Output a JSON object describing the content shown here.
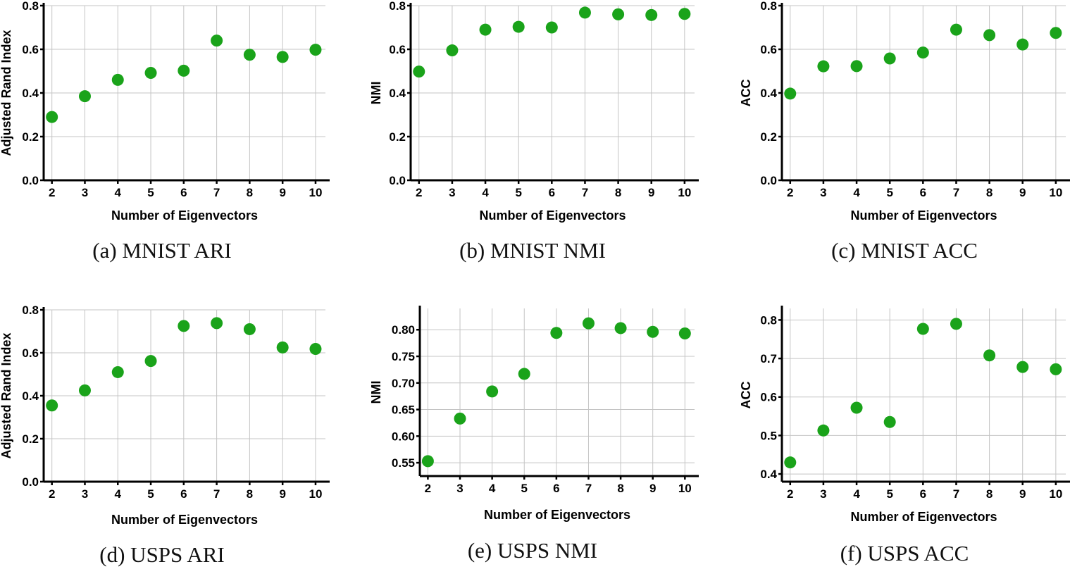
{
  "colors": {
    "marker": "#1aa31a",
    "grid": "#c4c4c4",
    "axis": "#000000"
  },
  "chart_data": [
    {
      "type": "scatter",
      "caption": "(a) MNIST ARI",
      "xlabel": "Number of Eigenvectors",
      "ylabel": "Adjusted Rand Index",
      "x": [
        2,
        3,
        4,
        5,
        6,
        7,
        8,
        9,
        10
      ],
      "values": [
        0.29,
        0.385,
        0.46,
        0.492,
        0.502,
        0.64,
        0.575,
        0.565,
        0.598
      ],
      "xlim": [
        1.75,
        10.3
      ],
      "ylim": [
        0.0,
        0.8
      ],
      "xticks": [
        "2",
        "3",
        "4",
        "5",
        "6",
        "7",
        "8",
        "9",
        "10"
      ],
      "yticks": [
        "0.0",
        "0.2",
        "0.4",
        "0.6",
        "0.8"
      ],
      "grid": true
    },
    {
      "type": "scatter",
      "caption": "(b) MNIST NMI",
      "xlabel": "Number of Eigenvectors",
      "ylabel": "NMI",
      "x": [
        2,
        3,
        4,
        5,
        6,
        7,
        8,
        9,
        10
      ],
      "values": [
        0.498,
        0.595,
        0.69,
        0.703,
        0.7,
        0.768,
        0.76,
        0.757,
        0.762
      ],
      "xlim": [
        1.75,
        10.3
      ],
      "ylim": [
        0.0,
        0.8
      ],
      "xticks": [
        "2",
        "3",
        "4",
        "5",
        "6",
        "7",
        "8",
        "9",
        "10"
      ],
      "yticks": [
        "0.0",
        "0.2",
        "0.4",
        "0.6",
        "0.8"
      ],
      "grid": true
    },
    {
      "type": "scatter",
      "caption": "(c) MNIST ACC",
      "xlabel": "Number of Eigenvectors",
      "ylabel": "ACC",
      "x": [
        2,
        3,
        4,
        5,
        6,
        7,
        8,
        9,
        10
      ],
      "values": [
        0.397,
        0.522,
        0.523,
        0.558,
        0.585,
        0.69,
        0.665,
        0.622,
        0.675
      ],
      "xlim": [
        1.75,
        10.3
      ],
      "ylim": [
        0.0,
        0.8
      ],
      "xticks": [
        "2",
        "3",
        "4",
        "5",
        "6",
        "7",
        "8",
        "9",
        "10"
      ],
      "yticks": [
        "0.0",
        "0.2",
        "0.4",
        "0.6",
        "0.8"
      ],
      "grid": true
    },
    {
      "type": "scatter",
      "caption": "(d) USPS ARI",
      "xlabel": "Number of Eigenvectors",
      "ylabel": "Adjusted Rand Index",
      "x": [
        2,
        3,
        4,
        5,
        6,
        7,
        8,
        9,
        10
      ],
      "values": [
        0.355,
        0.425,
        0.51,
        0.562,
        0.725,
        0.738,
        0.71,
        0.625,
        0.618
      ],
      "xlim": [
        1.75,
        10.3
      ],
      "ylim": [
        0.0,
        0.8
      ],
      "xticks": [
        "2",
        "3",
        "4",
        "5",
        "6",
        "7",
        "8",
        "9",
        "10"
      ],
      "yticks": [
        "0.0",
        "0.2",
        "0.4",
        "0.6",
        "0.8"
      ],
      "grid": true
    },
    {
      "type": "scatter",
      "caption": "(e) USPS NMI",
      "xlabel": "Number of Eigenvectors",
      "ylabel": "NMI",
      "x": [
        2,
        3,
        4,
        5,
        6,
        7,
        8,
        9,
        10
      ],
      "values": [
        0.553,
        0.633,
        0.684,
        0.717,
        0.794,
        0.812,
        0.803,
        0.796,
        0.793
      ],
      "xlim": [
        1.75,
        10.3
      ],
      "ylim": [
        0.525,
        0.84
      ],
      "xticks": [
        "2",
        "3",
        "4",
        "5",
        "6",
        "7",
        "8",
        "9",
        "10"
      ],
      "yticks": [
        "0.55",
        "0.60",
        "0.65",
        "0.70",
        "0.75",
        "0.80"
      ],
      "grid": true
    },
    {
      "type": "scatter",
      "caption": "(f) USPS ACC",
      "xlabel": "Number of Eigenvectors",
      "ylabel": "ACC",
      "x": [
        2,
        3,
        4,
        5,
        6,
        7,
        8,
        9,
        10
      ],
      "values": [
        0.43,
        0.513,
        0.572,
        0.535,
        0.777,
        0.79,
        0.708,
        0.678,
        0.672
      ],
      "xlim": [
        1.75,
        10.3
      ],
      "ylim": [
        0.38,
        0.83
      ],
      "xticks": [
        "2",
        "3",
        "4",
        "5",
        "6",
        "7",
        "8",
        "9",
        "10"
      ],
      "yticks": [
        "0.4",
        "0.5",
        "0.6",
        "0.7",
        "0.8"
      ],
      "grid": true
    }
  ]
}
